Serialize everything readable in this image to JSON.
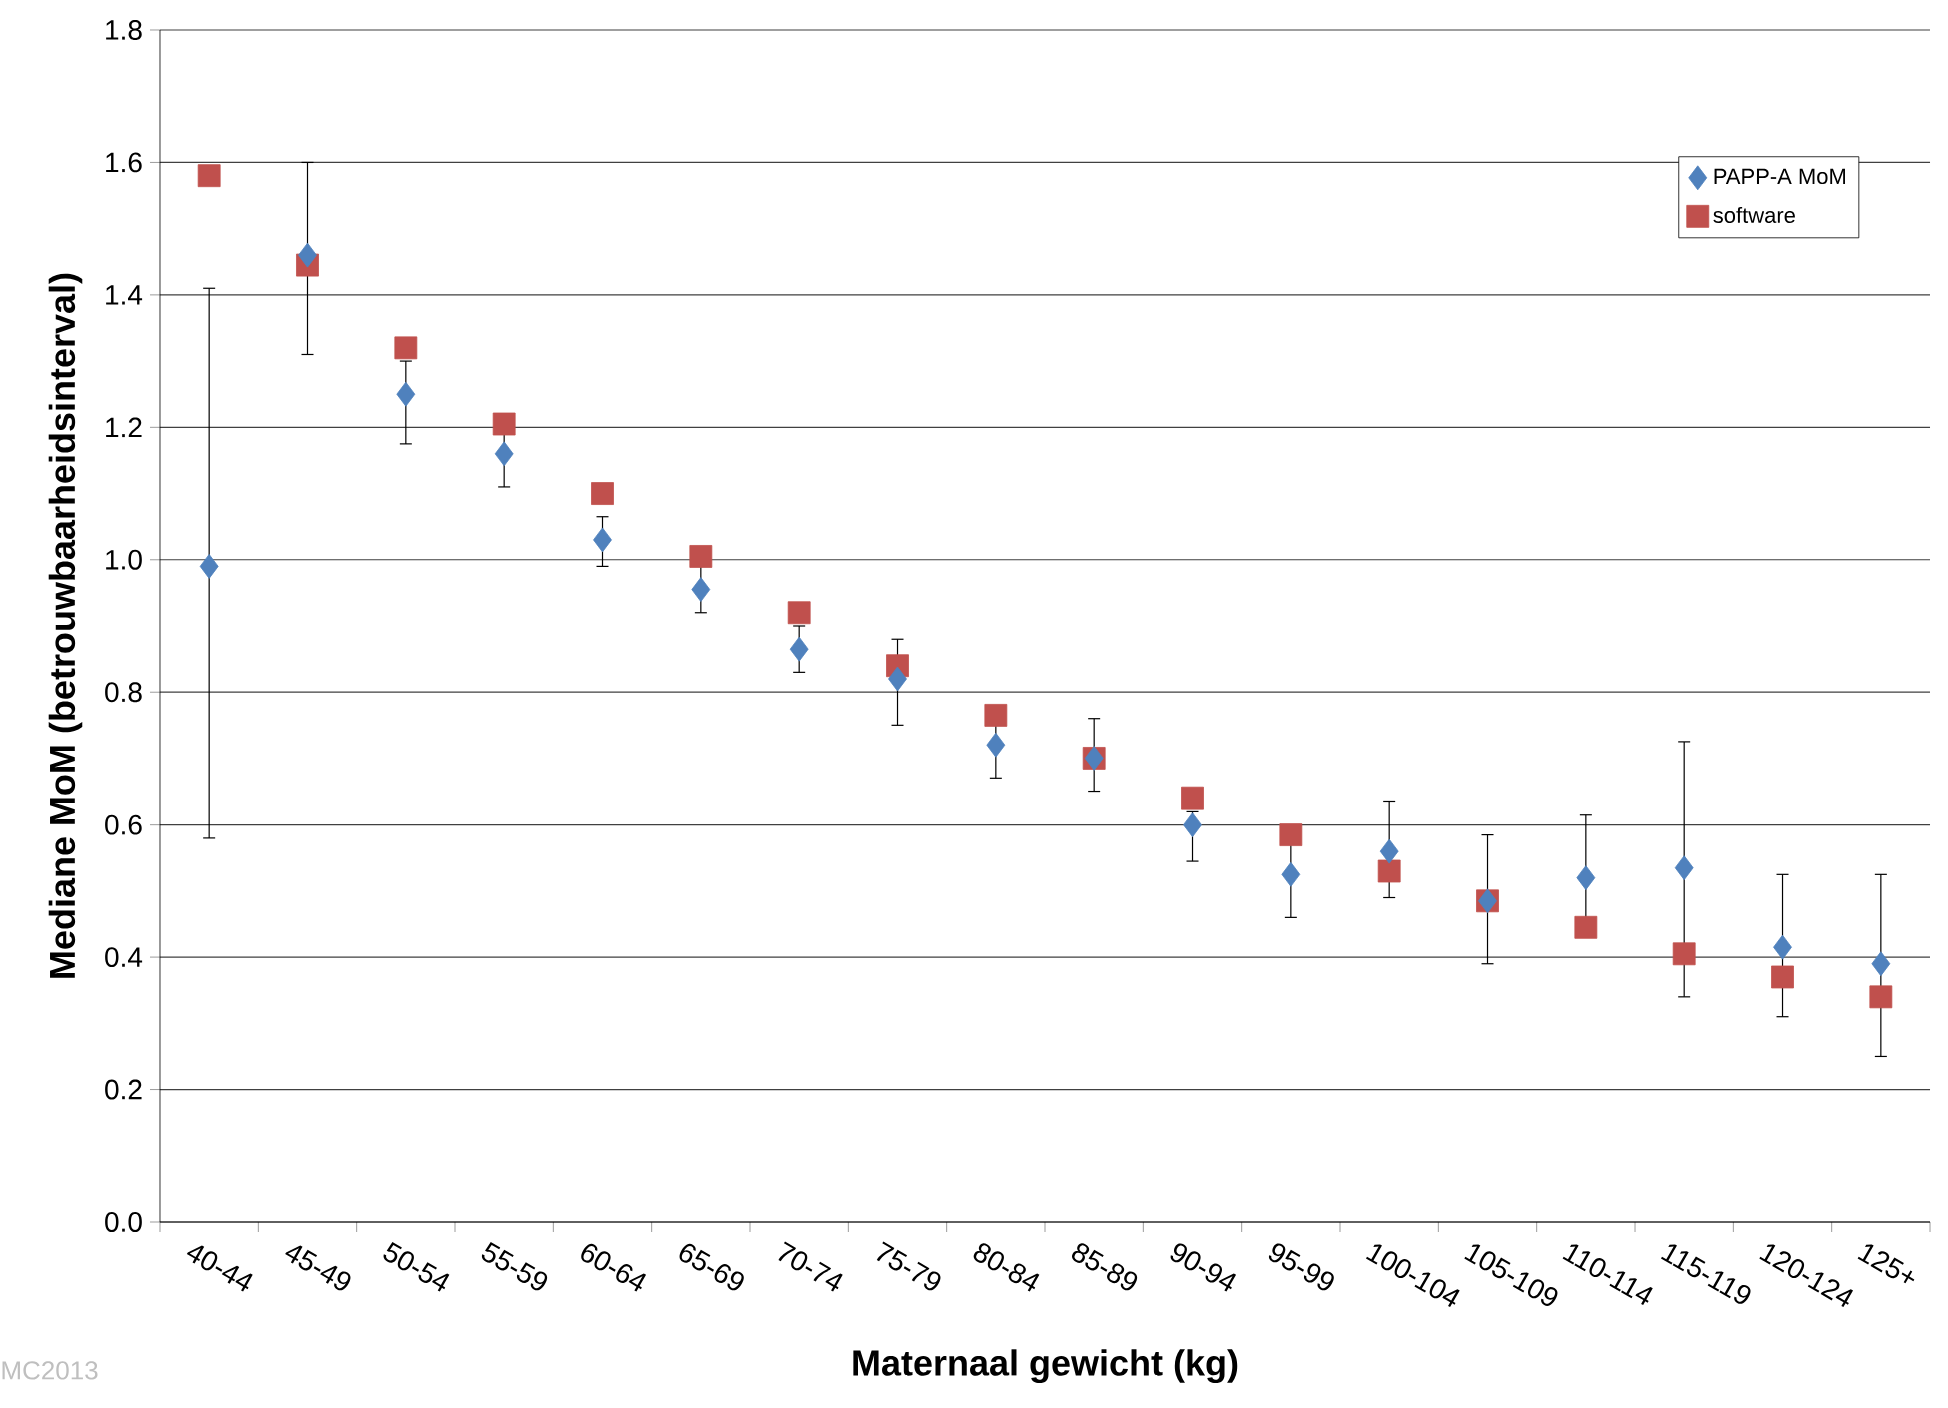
{
  "chart_data": {
    "type": "scatter",
    "xlabel": "Maternaal gewicht (kg)",
    "ylabel": "Mediane MoM (betrouwbaarheidsinterval)",
    "categories": [
      "40-44",
      "45-49",
      "50-54",
      "55-59",
      "60-64",
      "65-69",
      "70-74",
      "75-79",
      "80-84",
      "85-89",
      "90-94",
      "95-99",
      "100-104",
      "105-109",
      "110-114",
      "115-119",
      "120-124",
      "125+"
    ],
    "series": [
      {
        "name": "PAPP-A MoM",
        "color": "#4f81bd",
        "marker": "diamond",
        "values": [
          0.99,
          1.46,
          1.25,
          1.16,
          1.03,
          0.955,
          0.865,
          0.82,
          0.72,
          0.7,
          0.6,
          0.525,
          0.56,
          0.485,
          0.52,
          0.535,
          0.415,
          0.39
        ],
        "errors": [
          [
            0.58,
            1.41
          ],
          [
            1.31,
            1.6
          ],
          [
            1.175,
            1.3
          ],
          [
            1.11,
            1.19
          ],
          [
            0.99,
            1.065
          ],
          [
            0.92,
            0.99
          ],
          [
            0.83,
            0.9
          ],
          [
            0.75,
            0.88
          ],
          [
            0.67,
            0.755
          ],
          [
            0.65,
            0.76
          ],
          [
            0.545,
            0.62
          ],
          [
            0.46,
            0.575
          ],
          [
            0.49,
            0.635
          ],
          [
            0.39,
            0.585
          ],
          [
            0.43,
            0.615
          ],
          [
            0.34,
            0.725
          ],
          [
            0.31,
            0.525
          ],
          [
            0.25,
            0.525
          ]
        ]
      },
      {
        "name": "software",
        "color": "#c0504d",
        "marker": "square",
        "values": [
          1.58,
          1.445,
          1.32,
          1.205,
          1.1,
          1.005,
          0.92,
          0.84,
          0.765,
          0.7,
          0.64,
          0.585,
          0.53,
          0.485,
          0.445,
          0.405,
          0.37,
          0.34
        ]
      }
    ],
    "ylim": [
      0,
      1.8
    ],
    "yticks": [
      {
        "value": 0,
        "label": "0.0"
      },
      {
        "value": 0.2,
        "label": "0.2"
      },
      {
        "value": 0.4,
        "label": "0.4"
      },
      {
        "value": 0.6,
        "label": "0.6"
      },
      {
        "value": 0.8,
        "label": "0.8"
      },
      {
        "value": 1.0,
        "label": "1.0"
      },
      {
        "value": 1.2,
        "label": "1.2"
      },
      {
        "value": 1.4,
        "label": "1.4"
      },
      {
        "value": 1.6,
        "label": "1.6"
      },
      {
        "value": 1.8,
        "label": "1.8"
      }
    ],
    "grid": "y",
    "legend": "top right",
    "annotations": [
      "MC2013"
    ]
  }
}
